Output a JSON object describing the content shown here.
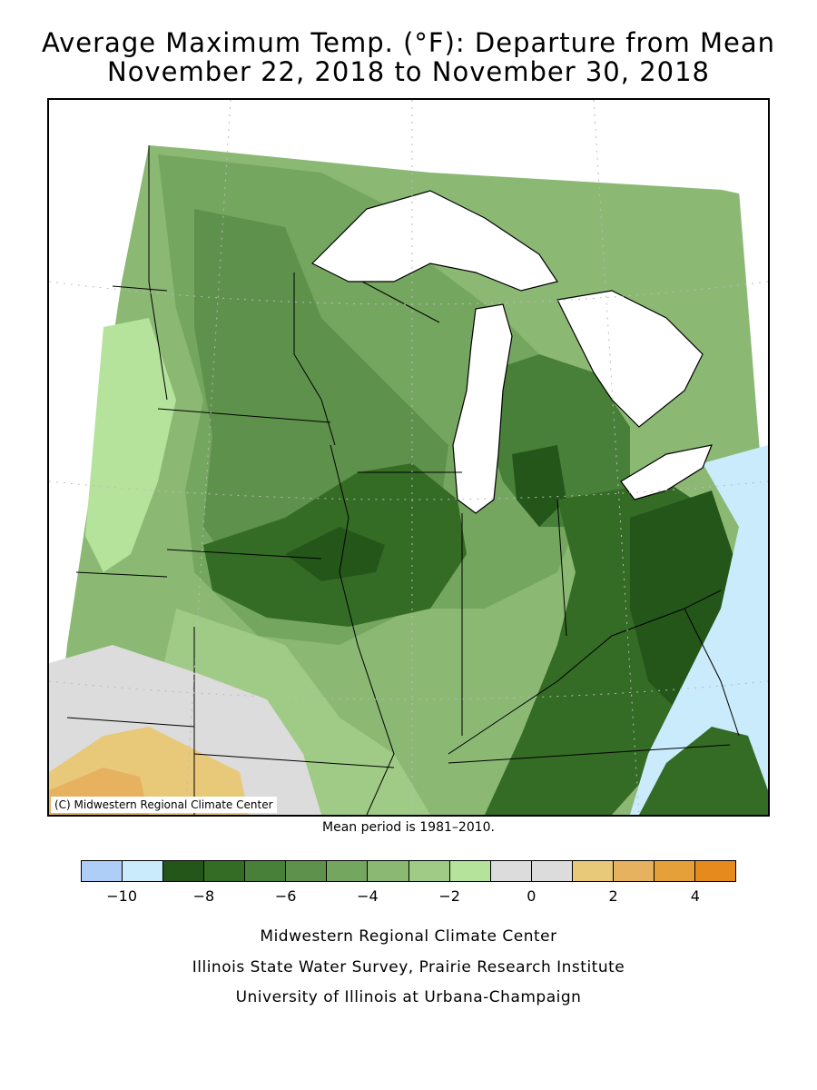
{
  "title_line1": "Average Maximum Temp. (°F): Departure from Mean",
  "title_line2": "November 22, 2018 to November 30, 2018",
  "copyright": "(C) Midwestern Regional Climate Center",
  "mean_note": "Mean period is 1981–2010.",
  "legend": {
    "colors": [
      "#aecdf7",
      "#c9ebfb",
      "#24561a",
      "#346b25",
      "#48803a",
      "#5e914b",
      "#75a65f",
      "#8bb873",
      "#a0cb86",
      "#b5e39c",
      "#dcdcdc",
      "#dcdcdc",
      "#e8c97a",
      "#e6b260",
      "#e6a03a",
      "#e68a1e"
    ],
    "tick_labels": [
      "-10",
      "-8",
      "-6",
      "-4",
      "-2",
      "0",
      "2",
      "4"
    ]
  },
  "credits": [
    "Midwestern Regional Climate Center",
    "Illinois State Water Survey, Prairie Research Institute",
    "University of Illinois at Urbana-Champaign"
  ],
  "colors": {
    "water": "#ffffff",
    "state_border": "#000000",
    "grid": "#bbbbbb"
  }
}
